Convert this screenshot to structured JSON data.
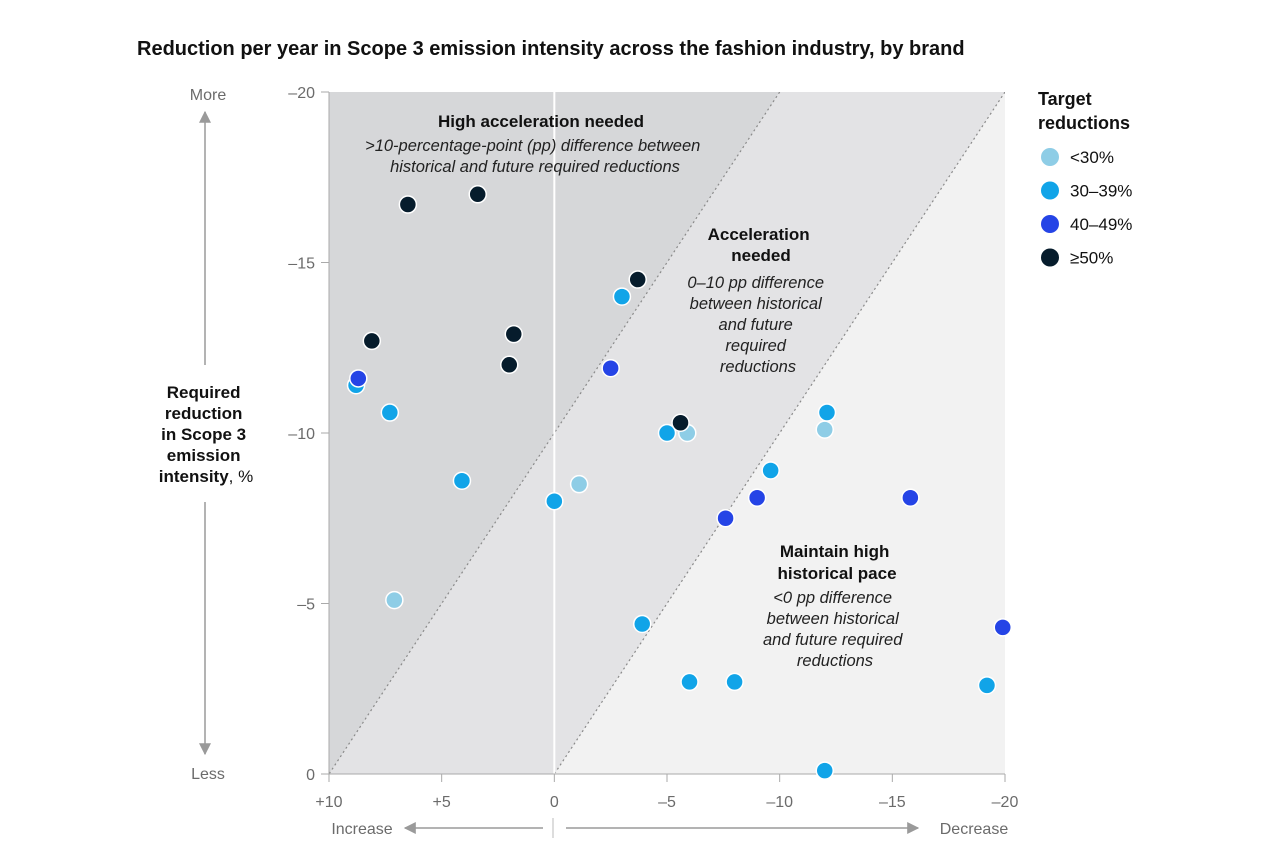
{
  "colors": {
    "lt30": "#8ecde6",
    "30to39": "#11a4e8",
    "40to49": "#2544e6",
    "ge50": "#061c2c",
    "zone_high": "#d6d7d9",
    "zone_accel": "#e3e3e5",
    "zone_maintain": "#f2f2f2"
  },
  "chart_data": {
    "type": "scatter",
    "title": "Reduction per year in Scope 3 emission intensity across the fashion industry, by brand",
    "xlabel": "",
    "ylabel": "Required reduction in Scope 3 emission intensity, %",
    "ylabel_unit": ", %",
    "ylabel_lines": [
      "Required",
      "reduction",
      "in Scope 3",
      "emission",
      "intensity"
    ],
    "xlim": [
      10,
      -20
    ],
    "ylim": [
      0,
      -20
    ],
    "x_ticks": [
      10,
      5,
      0,
      -5,
      -10,
      -15,
      -20
    ],
    "x_tick_labels": [
      "+10",
      "+5",
      "0",
      "–5",
      "–10",
      "–15",
      "–20"
    ],
    "y_ticks": [
      0,
      -5,
      -10,
      -15,
      -20
    ],
    "y_tick_labels": [
      "0",
      "–5",
      "–10",
      "–15",
      "–20"
    ],
    "x_direction_labels": {
      "left": "Increase",
      "right": "Decrease"
    },
    "y_direction_labels": {
      "top": "More",
      "bottom": "Less"
    },
    "legend": {
      "title_lines": [
        "Target",
        "reductions"
      ],
      "placement": "right",
      "entries": [
        {
          "key": "lt30",
          "label": "<30%"
        },
        {
          "key": "30to39",
          "label": "30–39%"
        },
        {
          "key": "40to49",
          "label": "40–49%"
        },
        {
          "key": "ge50",
          "label": "≥50%"
        }
      ]
    },
    "zones": [
      {
        "key": "high",
        "title_lines": [
          "High acceleration needed"
        ],
        "desc_lines": [
          ">10-percentage-point (pp) difference between",
          "historical and future required reductions"
        ]
      },
      {
        "key": "accel",
        "title_lines": [
          "Acceleration",
          "needed"
        ],
        "desc_lines": [
          "0–10 pp difference",
          "between historical",
          "and future",
          "required",
          "reductions"
        ]
      },
      {
        "key": "maintain",
        "title_lines": [
          "Maintain high",
          "historical pace"
        ],
        "desc_lines": [
          "<0 pp difference",
          "between historical",
          "and future required",
          "reductions"
        ]
      }
    ],
    "series": [
      {
        "key": "lt30",
        "name": "<30%",
        "points": [
          [
            -5.9,
            -10
          ],
          [
            -12,
            -10.1
          ],
          [
            -1.1,
            -8.5
          ],
          [
            7.1,
            -5.1
          ]
        ]
      },
      {
        "key": "30to39",
        "name": "30–39%",
        "points": [
          [
            8.8,
            -11.4
          ],
          [
            7.3,
            -10.6
          ],
          [
            -3.0,
            -14.0
          ],
          [
            -5.0,
            -10.0
          ],
          [
            -12.1,
            -10.6
          ],
          [
            4.1,
            -8.6
          ],
          [
            0.0,
            -8.0
          ],
          [
            -9.6,
            -8.9
          ],
          [
            -3.9,
            -4.4
          ],
          [
            -6.0,
            -2.7
          ],
          [
            -8.0,
            -2.7
          ],
          [
            -19.2,
            -2.6
          ],
          [
            -12.0,
            -0.1
          ]
        ]
      },
      {
        "key": "40to49",
        "name": "40–49%",
        "points": [
          [
            8.7,
            -11.6
          ],
          [
            -2.5,
            -11.9
          ],
          [
            -9.0,
            -8.1
          ],
          [
            -7.6,
            -7.5
          ],
          [
            -15.8,
            -8.1
          ],
          [
            -19.9,
            -4.3
          ]
        ]
      },
      {
        "key": "ge50",
        "name": "≥50%",
        "points": [
          [
            6.5,
            -16.7
          ],
          [
            3.4,
            -17.0
          ],
          [
            -3.7,
            -14.5
          ],
          [
            8.1,
            -12.7
          ],
          [
            1.8,
            -12.9
          ],
          [
            2.0,
            -12.0
          ],
          [
            -5.6,
            -10.3
          ]
        ]
      }
    ]
  }
}
